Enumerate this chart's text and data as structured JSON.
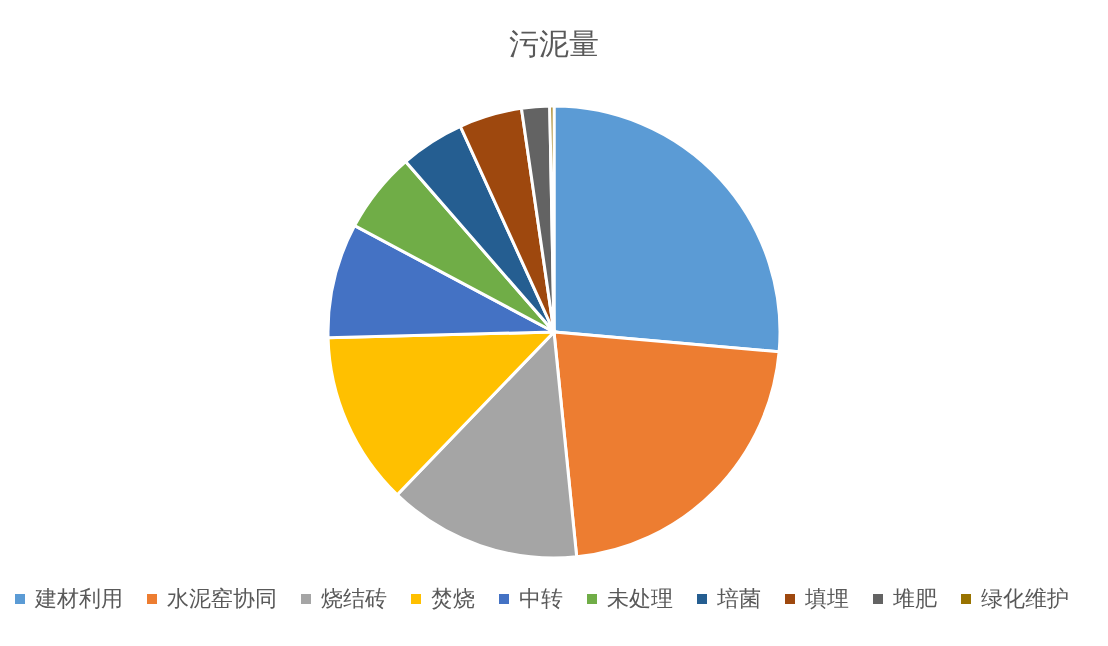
{
  "chart_data": {
    "type": "pie",
    "title": "污泥量",
    "categories": [
      "建材利用",
      "水泥窑协同",
      "烧结砖",
      "焚烧",
      "中转",
      "未处理",
      "培菌",
      "填埋",
      "堆肥",
      "绿化维护"
    ],
    "values": [
      26.4,
      22,
      13.8,
      12.4,
      8.2,
      5.8,
      4.6,
      4.5,
      2.0,
      0.3
    ],
    "colors": [
      "#5b9bd5",
      "#ed7d31",
      "#a5a5a5",
      "#ffc000",
      "#4472c4",
      "#70ad47",
      "#255e91",
      "#9e480e",
      "#636363",
      "#997300"
    ],
    "legend": "bottom"
  }
}
